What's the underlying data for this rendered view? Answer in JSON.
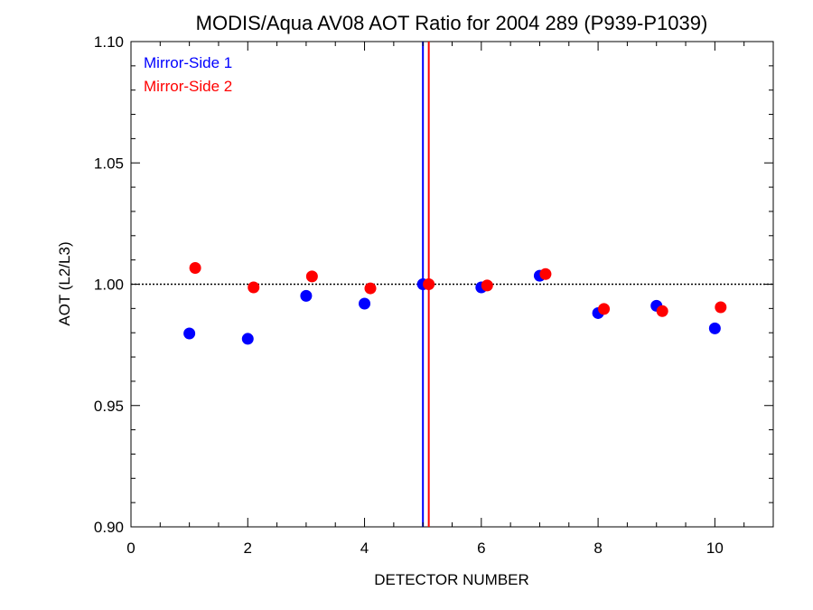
{
  "chart_data": {
    "type": "scatter",
    "title": "MODIS/Aqua AV08 AOT Ratio for 2004 289 (P939-P1039)",
    "xlabel": "DETECTOR NUMBER",
    "ylabel": "AOT (L2/L3)",
    "xlim": [
      0,
      11
    ],
    "ylim": [
      0.9,
      1.1
    ],
    "xticks": [
      "0",
      "2",
      "4",
      "6",
      "8",
      "10"
    ],
    "yticks": [
      "0.90",
      "0.95",
      "1.00",
      "1.05",
      "1.10"
    ],
    "reference_line_y": 1.0,
    "vertical_lines": [
      {
        "x": 5.0,
        "color": "#0000ff"
      },
      {
        "x": 5.1,
        "color": "#ff0000"
      }
    ],
    "legend_position": "top-left",
    "series": [
      {
        "name": "Mirror-Side 1",
        "color": "#0000ff",
        "x": [
          1,
          2,
          3,
          4,
          5,
          6,
          7,
          8,
          9,
          10
        ],
        "y": [
          0.9797,
          0.9775,
          0.9952,
          0.992,
          1.0,
          0.9987,
          1.0035,
          0.9881,
          0.9911,
          0.9818
        ]
      },
      {
        "name": "Mirror-Side 2",
        "color": "#ff0000",
        "x": [
          1.1,
          2.1,
          3.1,
          4.1,
          5.1,
          6.1,
          7.1,
          8.1,
          9.1,
          10.1
        ],
        "y": [
          1.0067,
          0.9987,
          1.0032,
          0.9983,
          1.0,
          0.9995,
          1.0042,
          0.9898,
          0.9889,
          0.9905
        ]
      }
    ]
  }
}
